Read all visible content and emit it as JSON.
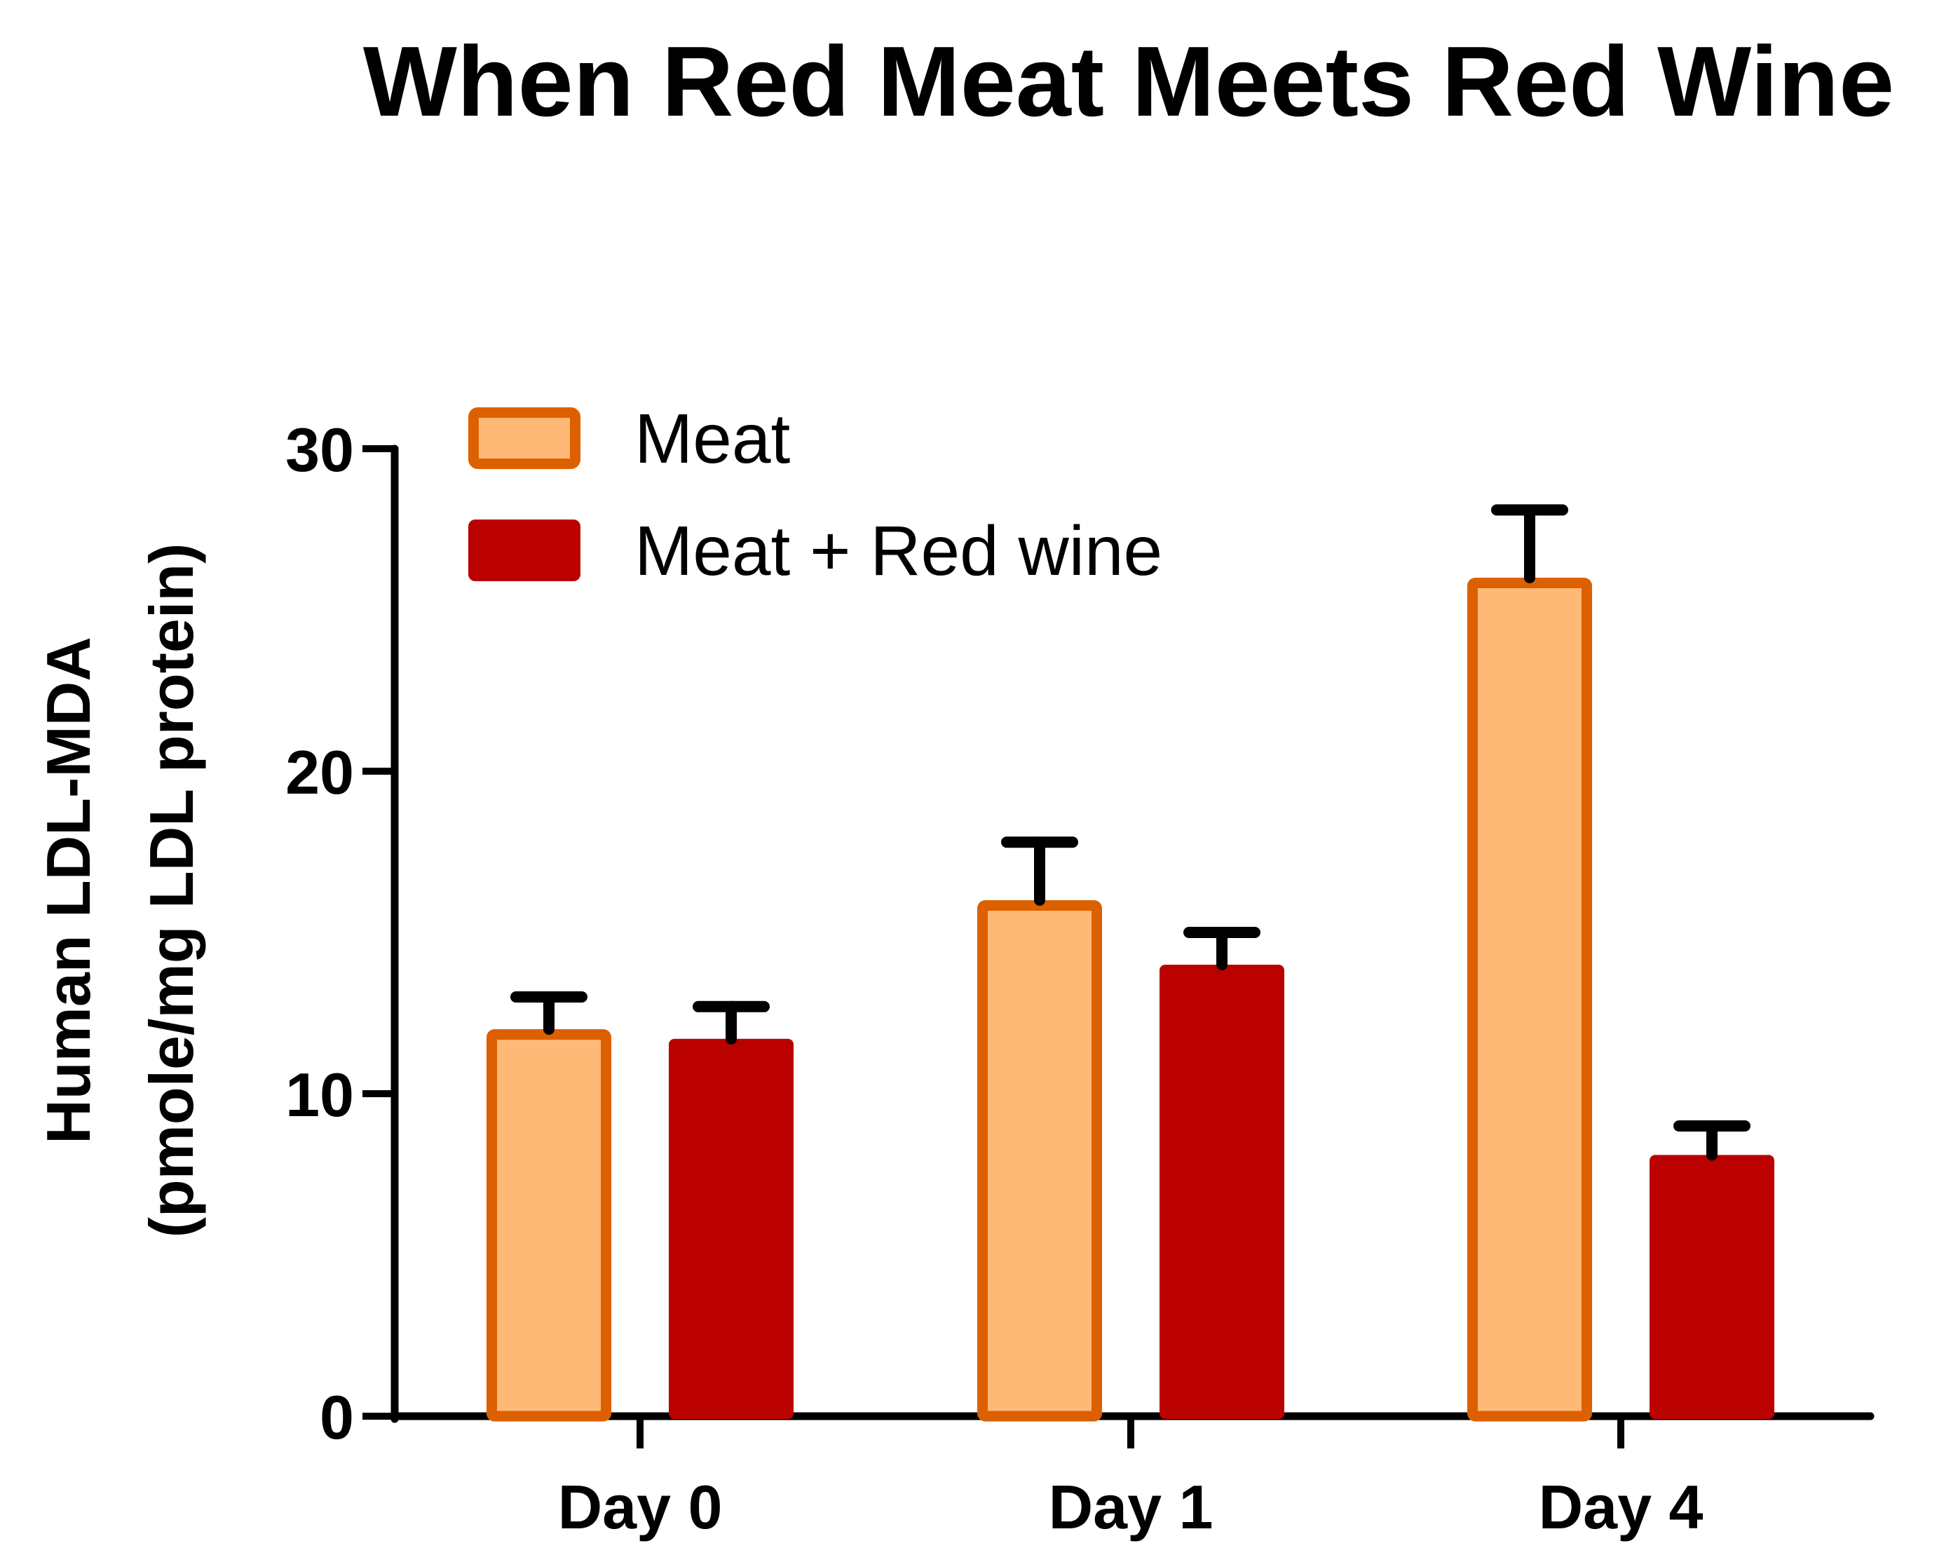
{
  "chart_data": {
    "type": "bar",
    "title": "When Red Meat Meets Red Wine",
    "ylabel_lines": [
      "Human LDL-MDA",
      "(pmole/mg LDL protein)"
    ],
    "xlabel": "",
    "categories": [
      "Day 0",
      "Day 1",
      "Day 4"
    ],
    "ylim": [
      0,
      30
    ],
    "yticks": [
      0,
      10,
      20,
      30
    ],
    "ytick_labels": [
      "0",
      "10",
      "20",
      "30"
    ],
    "legend_position": "top-left",
    "series": [
      {
        "name": "Meat",
        "values": [
          12.0,
          16.0,
          26.0
        ],
        "error": [
          1.0,
          1.8,
          2.1
        ],
        "fill": "#ffb976",
        "stroke": "#dd6000"
      },
      {
        "name": "Meat + Red wine",
        "values": [
          11.7,
          14.0,
          8.1
        ],
        "error": [
          1.0,
          1.0,
          0.9
        ],
        "fill": "#bb0000",
        "stroke": "#bb0000"
      }
    ]
  }
}
